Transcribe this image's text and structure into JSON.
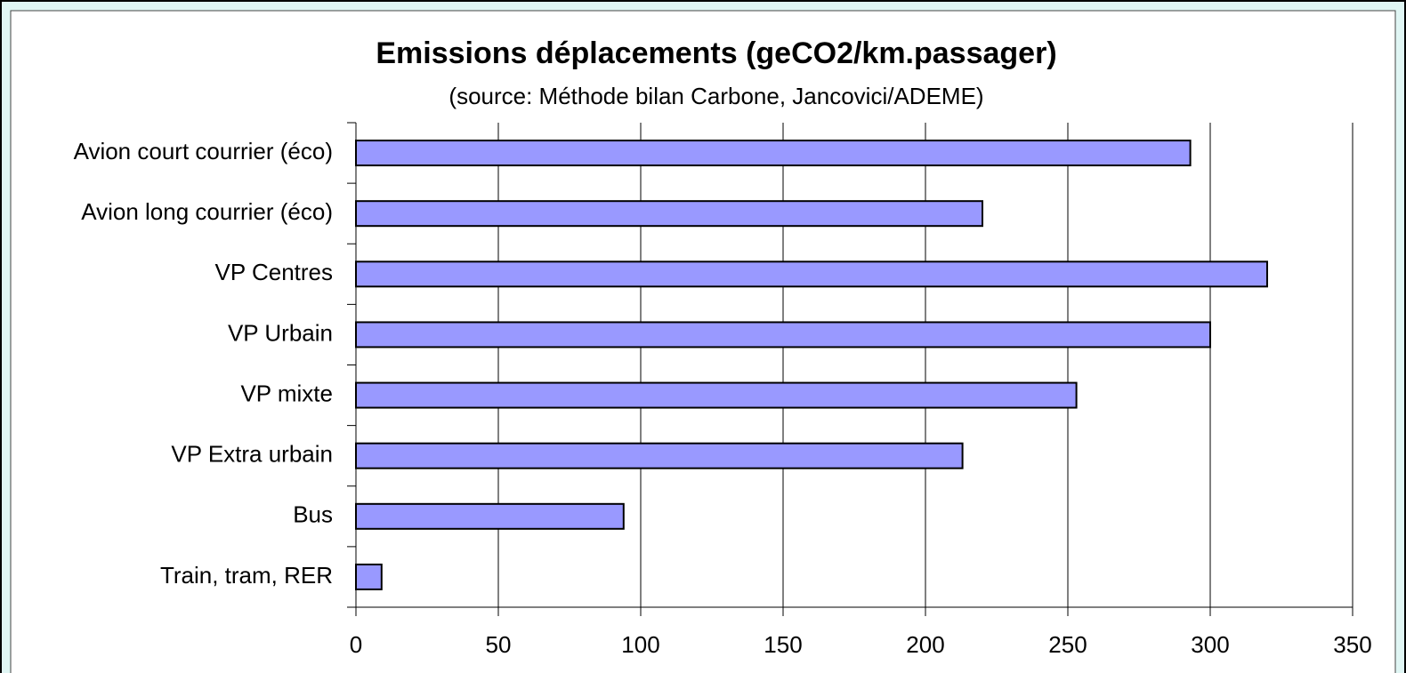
{
  "chart_data": {
    "type": "bar",
    "orientation": "horizontal",
    "title": "Emissions déplacements (geCO2/km.passager)",
    "subtitle": "(source: Méthode bilan Carbone, Jancovici/ADEME)",
    "categories": [
      "Avion court courrier (éco)",
      "Avion long courrier (éco)",
      "VP Centres",
      "VP Urbain",
      "VP mixte",
      "VP Extra urbain",
      "Bus",
      "Train, tram, RER"
    ],
    "values": [
      293,
      220,
      320,
      300,
      253,
      213,
      94,
      9
    ],
    "color": "#9999ff",
    "xlim": [
      0,
      350
    ],
    "xticks": [
      0,
      50,
      100,
      150,
      200,
      250,
      300,
      350
    ],
    "grid": true
  }
}
